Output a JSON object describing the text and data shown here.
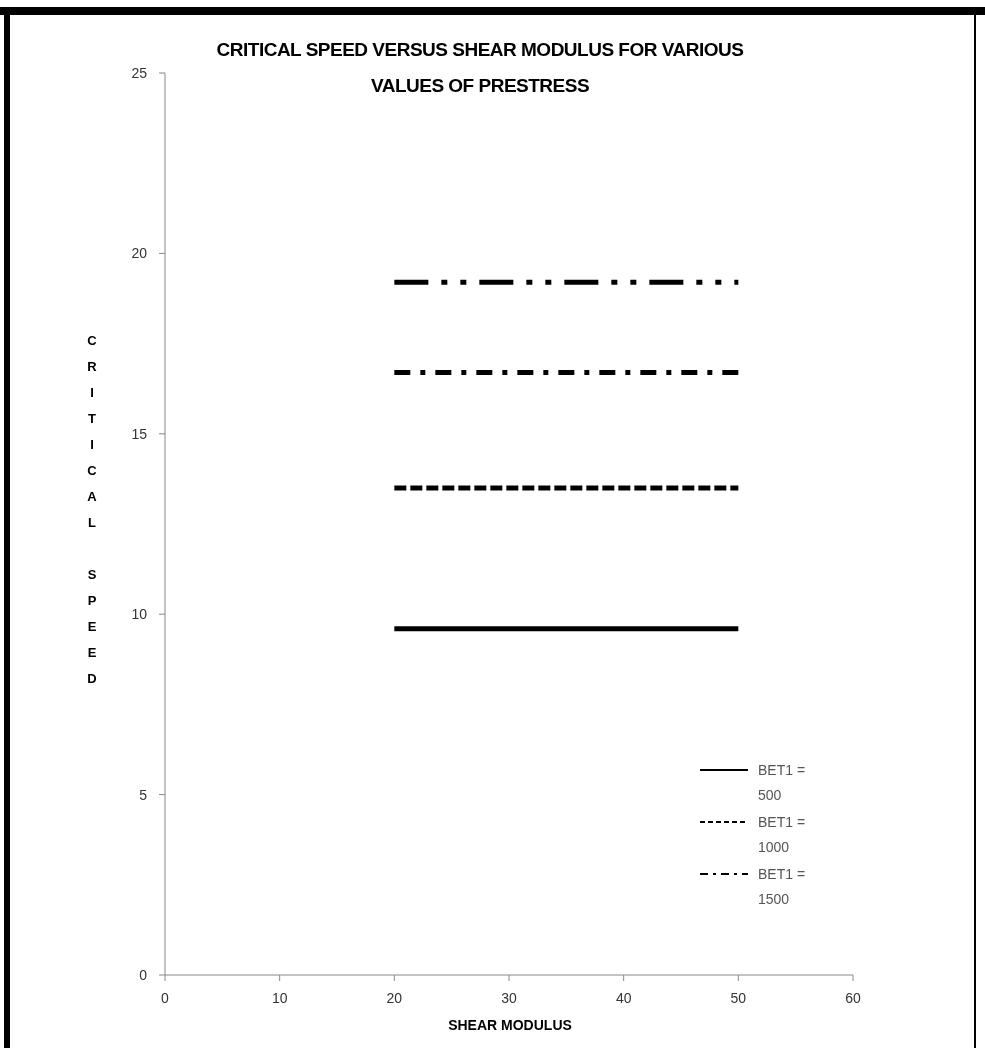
{
  "chart_data": {
    "type": "line",
    "title": "CRITICAL SPEED VERSUS SHEAR MODULUS FOR VARIOUS VALUES OF PRESTRESS",
    "xlabel": "SHEAR MODULUS",
    "ylabel": "CRITICAL SPEED",
    "x": [
      20,
      50
    ],
    "xlim": [
      0,
      60
    ],
    "xticks": [
      0,
      10,
      20,
      30,
      40,
      50,
      60
    ],
    "ylim": [
      0,
      25
    ],
    "yticks": [
      0,
      5,
      10,
      15,
      20,
      25
    ],
    "grid": false,
    "legend": "bottom right",
    "marker": "none",
    "series": [
      {
        "name": "BET1 = 500",
        "color": "#000000",
        "line_style": "solid",
        "values": [
          9.6,
          9.6
        ]
      },
      {
        "name": "BET1 = 1000",
        "color": "#000000",
        "line_style": "dashed",
        "values": [
          13.5,
          13.5
        ]
      },
      {
        "name": "BET1 = 1500",
        "color": "#000000",
        "line_style": "dashdot",
        "values": [
          16.7,
          16.7
        ]
      },
      {
        "color": "#000000",
        "line_style": "dashdotdot",
        "values": [
          19.2,
          19.2
        ]
      }
    ]
  }
}
